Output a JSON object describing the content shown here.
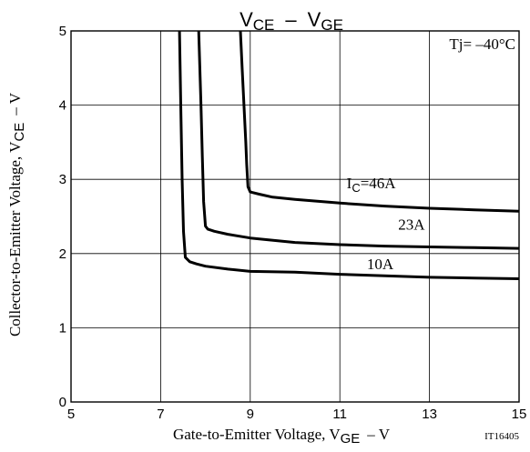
{
  "chart_data": {
    "type": "line",
    "title": {
      "main": "V",
      "main_sub": "CE",
      "sep": "–",
      "main2": "V",
      "main2_sub": "GE"
    },
    "xlabel": {
      "text": "Gate-to-Emitter Voltage, V",
      "sub": "GE",
      "unit": "– V"
    },
    "ylabel": {
      "text": "Collector-to-Emitter Voltage, V",
      "sub": "CE",
      "unit": "– V"
    },
    "xlim": [
      5,
      15
    ],
    "ylim": [
      0,
      5
    ],
    "xticks": [
      5,
      7,
      9,
      11,
      13,
      15
    ],
    "yticks": [
      0,
      1,
      2,
      3,
      4,
      5
    ],
    "grid": true,
    "annotation_temp": "Tj= –40°C",
    "figure_id": "IT16405",
    "series": [
      {
        "name": "IC=46A",
        "label": {
          "prefix": "I",
          "sub": "C",
          "suffix": "=46A",
          "at": [
            11.7,
            2.88
          ]
        },
        "x": [
          8.78,
          8.82,
          8.86,
          8.9,
          8.92,
          8.95,
          9.0,
          9.2,
          9.5,
          10.0,
          11.0,
          12.0,
          13.0,
          14.0,
          15.0
        ],
        "y": [
          5.0,
          4.5,
          4.0,
          3.5,
          3.2,
          2.9,
          2.83,
          2.8,
          2.76,
          2.73,
          2.68,
          2.64,
          2.61,
          2.59,
          2.57
        ]
      },
      {
        "name": "23A",
        "label": {
          "prefix": "23A",
          "sub": "",
          "suffix": "",
          "at": [
            12.6,
            2.32
          ]
        },
        "x": [
          7.85,
          7.9,
          7.93,
          7.96,
          8.0,
          8.05,
          8.2,
          8.5,
          9.0,
          10.0,
          11.0,
          12.0,
          13.0,
          14.0,
          15.0
        ],
        "y": [
          5.0,
          4.0,
          3.3,
          2.7,
          2.37,
          2.33,
          2.3,
          2.26,
          2.21,
          2.15,
          2.12,
          2.1,
          2.09,
          2.08,
          2.07
        ]
      },
      {
        "name": "10A",
        "label": {
          "prefix": "10A",
          "sub": "",
          "suffix": "",
          "at": [
            11.9,
            1.79
          ]
        },
        "x": [
          7.42,
          7.45,
          7.48,
          7.51,
          7.55,
          7.65,
          7.8,
          8.0,
          8.5,
          9.0,
          10.0,
          11.0,
          12.0,
          13.0,
          14.0,
          15.0
        ],
        "y": [
          5.0,
          4.0,
          3.0,
          2.3,
          1.95,
          1.89,
          1.86,
          1.83,
          1.79,
          1.76,
          1.75,
          1.72,
          1.7,
          1.68,
          1.67,
          1.66
        ]
      }
    ]
  }
}
